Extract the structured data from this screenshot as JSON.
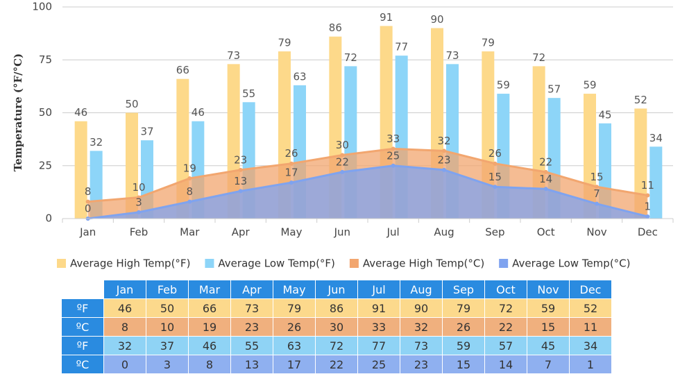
{
  "chart_data": {
    "type": "bar",
    "y_label": "Temperature (°F/°C)",
    "categories": [
      "Jan",
      "Feb",
      "Mar",
      "Apr",
      "May",
      "Jun",
      "Jul",
      "Aug",
      "Sep",
      "Oct",
      "Nov",
      "Dec"
    ],
    "series": [
      {
        "name": "Average High Temp(°F)",
        "type": "bar",
        "color": "#fdd98a",
        "values": [
          46,
          50,
          66,
          73,
          79,
          86,
          91,
          90,
          79,
          72,
          59,
          52
        ]
      },
      {
        "name": "Average Low Temp(°F)",
        "type": "bar",
        "color": "#8dd5f8",
        "values": [
          32,
          37,
          46,
          55,
          63,
          72,
          77,
          73,
          59,
          57,
          45,
          34
        ]
      },
      {
        "name": "Average High Temp(°C)",
        "type": "area",
        "color": "#f2a66f",
        "values": [
          8,
          10,
          19,
          23,
          26,
          30,
          33,
          32,
          26,
          22,
          15,
          11
        ]
      },
      {
        "name": "Average Low Temp(°C)",
        "type": "area",
        "color": "#7fa3ef",
        "values": [
          0,
          3,
          8,
          13,
          17,
          22,
          25,
          23,
          15,
          14,
          7,
          1
        ]
      }
    ],
    "ylim": [
      0,
      100
    ],
    "yticks": [
      0,
      25,
      50,
      75,
      100
    ],
    "grid": true
  },
  "table": {
    "row_labels": [
      "ºF",
      "ºC",
      "ºF",
      "ºC"
    ]
  }
}
